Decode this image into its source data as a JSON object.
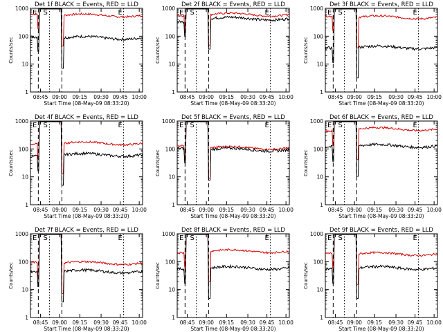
{
  "chart_data": [
    {
      "type": "line",
      "title": "Det 1f BLACK = Events, RED = LLD",
      "xlabel": "Start Time (08-May-09 08:33:20)",
      "ylabel": "Counts/sec",
      "yscale": "log",
      "ylim": [
        1,
        1000
      ],
      "xticks": [
        "08:45",
        "09:00",
        "09:15",
        "09:30",
        "09:45",
        "10:00"
      ],
      "yticks": [
        "1",
        "10",
        "100",
        "1000"
      ],
      "markers": [
        "E",
        "S",
        "E"
      ],
      "series_colors": {
        "events": "#000000",
        "lld": "#d40000"
      },
      "profile": {
        "events": {
          "pre": 95,
          "post": 88
        },
        "lld": {
          "pre": 620,
          "post": 560
        }
      }
    },
    {
      "type": "line",
      "title": "Det 2f BLACK = Events, RED = LLD",
      "xlabel": "Start Time (08-May-09 08:33:20)",
      "ylabel": "Counts/sec",
      "yscale": "log",
      "ylim": [
        1,
        1000
      ],
      "xticks": [
        "08:45",
        "09:00",
        "09:15",
        "09:30",
        "09:45",
        "10:00"
      ],
      "yticks": [
        "1",
        "10",
        "100",
        "1000"
      ],
      "markers": [
        "E",
        "S",
        "E"
      ],
      "series_colors": {
        "events": "#000000",
        "lld": "#d40000"
      },
      "profile": {
        "events": {
          "pre": 330,
          "post": 430
        },
        "lld": {
          "pre": 550,
          "post": 600
        }
      }
    },
    {
      "type": "line",
      "title": "Det 3f BLACK = Events, RED = LLD",
      "xlabel": "Start Time (08-May-09 08:33:20)",
      "ylabel": "Counts/sec",
      "yscale": "log",
      "ylim": [
        1,
        1000
      ],
      "xticks": [
        "08:45",
        "09:00",
        "09:15",
        "09:30",
        "09:45",
        "10:00"
      ],
      "yticks": [
        "1",
        "10",
        "100",
        "1000"
      ],
      "markers": [
        "E",
        "S",
        "E"
      ],
      "series_colors": {
        "events": "#000000",
        "lld": "#d40000"
      },
      "profile": {
        "events": {
          "pre": 38,
          "post": 40
        },
        "lld": {
          "pre": 520,
          "post": 480
        }
      }
    },
    {
      "type": "line",
      "title": "Det 4f BLACK = Events, RED = LLD",
      "xlabel": "Start Time (08-May-09 08:33:20)",
      "ylabel": "Counts/sec",
      "yscale": "log",
      "ylim": [
        1,
        1000
      ],
      "xticks": [
        "08:45",
        "09:00",
        "09:15",
        "09:30",
        "09:45",
        "10:00"
      ],
      "yticks": [
        "1",
        "10",
        "100",
        "1000"
      ],
      "markers": [
        "E",
        "S",
        "E"
      ],
      "series_colors": {
        "events": "#000000",
        "lld": "#d40000"
      },
      "profile": {
        "events": {
          "pre": 55,
          "post": 62
        },
        "lld": {
          "pre": 150,
          "post": 160
        }
      }
    },
    {
      "type": "line",
      "title": "Det 5f BLACK = Events, RED = LLD",
      "xlabel": "Start Time (08-May-09 08:33:20)",
      "ylabel": "Counts/sec",
      "yscale": "log",
      "ylim": [
        1,
        1000
      ],
      "xticks": [
        "08:45",
        "09:00",
        "09:15",
        "09:30",
        "09:45",
        "10:00"
      ],
      "yticks": [
        "1",
        "10",
        "100",
        "1000"
      ],
      "markers": [
        "E",
        "S",
        "E"
      ],
      "series_colors": {
        "events": "#000000",
        "lld": "#d40000"
      },
      "profile": {
        "events": {
          "pre": 105,
          "post": 95
        },
        "lld": {
          "pre": 130,
          "post": 110
        }
      }
    },
    {
      "type": "line",
      "title": "Det 6f BLACK = Events, RED = LLD",
      "xlabel": "Start Time (08-May-09 08:33:20)",
      "ylabel": "Counts/sec",
      "yscale": "log",
      "ylim": [
        1,
        1000
      ],
      "xticks": [
        "08:45",
        "09:00",
        "09:15",
        "09:30",
        "09:45",
        "10:00"
      ],
      "yticks": [
        "1",
        "10",
        "100",
        "1000"
      ],
      "markers": [
        "E",
        "S",
        "E"
      ],
      "series_colors": {
        "events": "#000000",
        "lld": "#d40000"
      },
      "profile": {
        "events": {
          "pre": 120,
          "post": 130
        },
        "lld": {
          "pre": 440,
          "post": 520
        }
      }
    },
    {
      "type": "line",
      "title": "Det 7f BLACK = Events, RED = LLD",
      "xlabel": "Start Time (08-May-09 08:33:20)",
      "ylabel": "Counts/sec",
      "yscale": "log",
      "ylim": [
        1,
        1000
      ],
      "xticks": [
        "08:45",
        "09:00",
        "09:15",
        "09:30",
        "09:45",
        "10:00"
      ],
      "yticks": [
        "1",
        "10",
        "100",
        "1000"
      ],
      "markers": [
        "E",
        "S",
        "E"
      ],
      "series_colors": {
        "events": "#000000",
        "lld": "#d40000"
      },
      "profile": {
        "events": {
          "pre": 42,
          "post": 45
        },
        "lld": {
          "pre": 95,
          "post": 90
        }
      }
    },
    {
      "type": "line",
      "title": "Det 8f BLACK = Events, RED = LLD",
      "xlabel": "Start Time (08-May-09 08:33:20)",
      "ylabel": "Counts/sec",
      "yscale": "log",
      "ylim": [
        1,
        1000
      ],
      "xticks": [
        "08:45",
        "09:00",
        "09:15",
        "09:30",
        "09:45",
        "10:00"
      ],
      "yticks": [
        "1",
        "10",
        "100",
        "1000"
      ],
      "markers": [
        "E",
        "S",
        "E"
      ],
      "series_colors": {
        "events": "#000000",
        "lld": "#d40000"
      },
      "profile": {
        "events": {
          "pre": 55,
          "post": 60
        },
        "lld": {
          "pre": 210,
          "post": 240
        }
      }
    },
    {
      "type": "line",
      "title": "Det 9f BLACK = Events, RED = LLD",
      "xlabel": "Start Time (08-May-09 08:33:20)",
      "ylabel": "Counts/sec",
      "yscale": "log",
      "ylim": [
        1,
        1000
      ],
      "xticks": [
        "08:45",
        "09:00",
        "09:15",
        "09:30",
        "09:45",
        "10:00"
      ],
      "yticks": [
        "1",
        "10",
        "100",
        "1000"
      ],
      "markers": [
        "E",
        "S",
        "E"
      ],
      "series_colors": {
        "events": "#000000",
        "lld": "#d40000"
      },
      "profile": {
        "events": {
          "pre": 55,
          "post": 60
        },
        "lld": {
          "pre": 200,
          "post": 190
        }
      }
    }
  ]
}
